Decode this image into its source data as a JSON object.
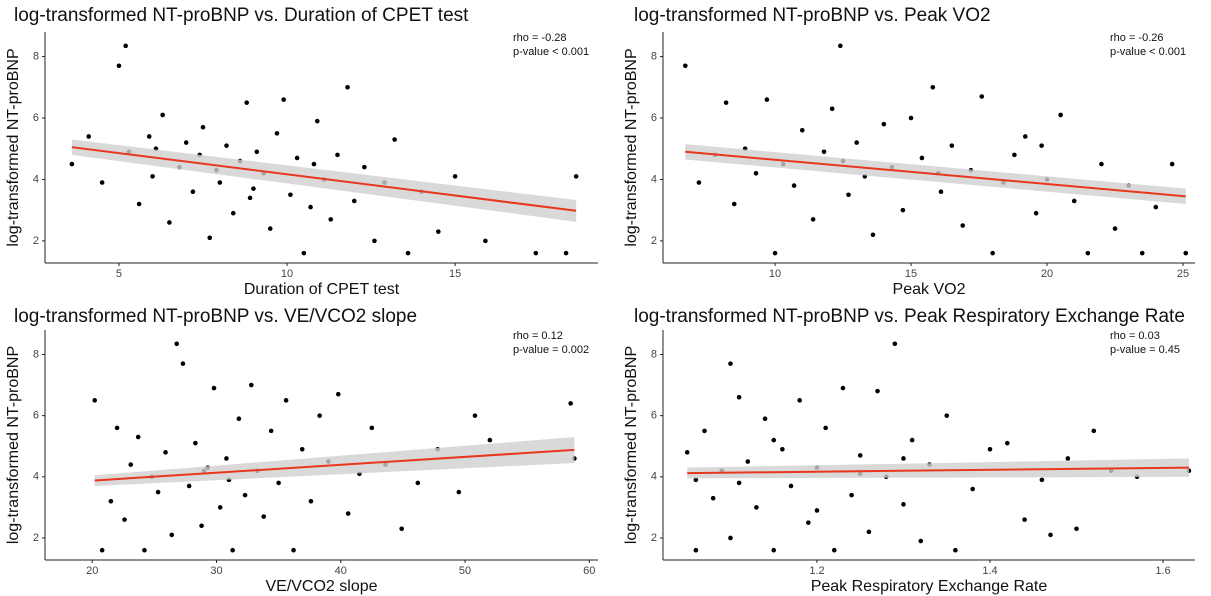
{
  "chart_data": [
    {
      "type": "scatter",
      "title": "log-transformed NT-proBNP vs. Duration of CPET test",
      "xlabel": "Duration of CPET test",
      "ylabel": "log-transformed NT-proBNP",
      "annotations": [
        "rho = -0.28",
        "p-value < 0.001"
      ],
      "xlim": [
        2.8,
        19.25
      ],
      "xticks": [
        5,
        10,
        15
      ],
      "ylim": [
        1.28,
        8.8
      ],
      "yticks": [
        2,
        4,
        6,
        8
      ],
      "color": "#000000",
      "x": [
        3.6,
        4.1,
        4.5,
        5.0,
        5.2,
        5.3,
        5.6,
        5.9,
        6.0,
        6.3,
        6.5,
        6.8,
        7.0,
        7.2,
        7.4,
        7.5,
        7.7,
        7.9,
        8.0,
        8.2,
        8.4,
        8.6,
        8.8,
        9.0,
        9.1,
        9.3,
        9.5,
        9.7,
        9.9,
        10.1,
        10.3,
        10.5,
        10.7,
        10.9,
        11.1,
        11.3,
        11.5,
        11.8,
        12.0,
        12.3,
        12.6,
        12.9,
        13.2,
        13.6,
        14.0,
        14.5,
        15.0,
        15.9,
        17.4,
        18.3,
        18.6,
        6.1,
        8.9,
        10.8
      ],
      "values": [
        4.5,
        5.4,
        3.9,
        7.7,
        8.35,
        4.9,
        3.2,
        5.4,
        4.1,
        6.1,
        2.6,
        4.4,
        5.2,
        3.6,
        4.8,
        5.7,
        2.1,
        4.3,
        3.9,
        5.1,
        2.9,
        4.6,
        6.5,
        3.7,
        4.9,
        4.2,
        2.4,
        5.5,
        6.6,
        3.5,
        4.7,
        1.6,
        3.1,
        5.9,
        4.0,
        2.7,
        4.8,
        7.0,
        3.3,
        4.4,
        2.0,
        3.9,
        5.3,
        1.6,
        3.6,
        2.3,
        4.1,
        2.0,
        1.6,
        1.6,
        4.1,
        5.0,
        3.4,
        4.5
      ],
      "fit": {
        "color": "#e8371e",
        "band_color": "#cfcfcf",
        "x": [
          3.6,
          18.6
        ],
        "values": [
          5.05,
          2.98
        ],
        "lower": [
          4.8,
          2.62
        ],
        "upper": [
          5.3,
          3.33
        ]
      }
    },
    {
      "type": "scatter",
      "title": "log-transformed NT-proBNP vs. Peak VO2",
      "xlabel": "Peak VO2",
      "ylabel": "log-transformed NT-proBNP",
      "annotations": [
        "rho = -0.26",
        "p-value < 0.001"
      ],
      "xlim": [
        5.88,
        25.44
      ],
      "xticks": [
        10,
        15,
        20,
        25
      ],
      "ylim": [
        1.28,
        8.8
      ],
      "yticks": [
        2,
        4,
        6,
        8
      ],
      "color": "#000000",
      "x": [
        6.7,
        7.2,
        7.8,
        8.2,
        8.5,
        8.9,
        9.3,
        9.7,
        10.0,
        10.3,
        10.7,
        11.0,
        11.4,
        11.8,
        12.1,
        12.4,
        12.7,
        13.0,
        13.3,
        13.6,
        14.0,
        14.3,
        14.7,
        15.0,
        15.4,
        15.8,
        16.1,
        16.5,
        16.9,
        17.2,
        17.6,
        18.0,
        18.4,
        18.8,
        19.2,
        19.6,
        20.0,
        20.5,
        21.0,
        21.5,
        22.0,
        22.5,
        23.0,
        23.5,
        24.0,
        24.6,
        25.1,
        12.5,
        16.0,
        19.8
      ],
      "values": [
        7.7,
        3.9,
        4.8,
        6.5,
        3.2,
        5.0,
        4.2,
        6.6,
        1.6,
        4.5,
        3.8,
        5.6,
        2.7,
        4.9,
        6.3,
        8.35,
        3.5,
        5.2,
        4.1,
        2.2,
        5.8,
        4.4,
        3.0,
        6.0,
        4.7,
        7.0,
        3.6,
        5.1,
        2.5,
        4.3,
        6.7,
        1.6,
        3.9,
        4.8,
        5.4,
        2.9,
        4.0,
        6.1,
        3.3,
        1.6,
        4.5,
        2.4,
        3.8,
        1.6,
        3.1,
        4.5,
        1.6,
        4.6,
        4.2,
        5.1
      ],
      "fit": {
        "color": "#e8371e",
        "band_color": "#cfcfcf",
        "x": [
          6.7,
          25.1
        ],
        "values": [
          4.9,
          3.45
        ],
        "lower": [
          4.65,
          3.2
        ],
        "upper": [
          5.15,
          3.7
        ]
      }
    },
    {
      "type": "scatter",
      "title": "log-transformed NT-proBNP vs. VE/VCO2 slope",
      "xlabel": "VE/VCO2 slope",
      "ylabel": "log-transformed NT-proBNP",
      "annotations": [
        "rho = 0.12",
        "p-value = 0.002"
      ],
      "xlim": [
        16.2,
        60.7
      ],
      "xticks": [
        20,
        30,
        40,
        50,
        60
      ],
      "ylim": [
        1.28,
        8.8
      ],
      "yticks": [
        2,
        4,
        6,
        8
      ],
      "color": "#000000",
      "x": [
        20.2,
        20.8,
        21.5,
        22.0,
        22.6,
        23.1,
        23.7,
        24.2,
        24.8,
        25.3,
        25.9,
        26.4,
        26.8,
        27.3,
        27.8,
        28.3,
        28.8,
        29.3,
        29.8,
        30.3,
        30.8,
        31.3,
        31.8,
        32.3,
        32.8,
        33.3,
        33.8,
        34.4,
        35.0,
        35.6,
        36.2,
        36.9,
        37.6,
        38.3,
        39.0,
        39.8,
        40.6,
        41.5,
        42.5,
        43.6,
        44.9,
        46.2,
        47.8,
        49.5,
        50.8,
        52.0,
        58.5,
        58.8,
        29.0,
        31.0
      ],
      "values": [
        6.5,
        1.6,
        3.2,
        5.6,
        2.6,
        4.4,
        5.3,
        1.6,
        4.0,
        3.5,
        4.8,
        2.1,
        8.35,
        7.7,
        3.7,
        5.1,
        2.4,
        4.3,
        6.9,
        3.0,
        4.6,
        1.6,
        5.9,
        3.4,
        7.0,
        4.2,
        2.7,
        5.5,
        3.8,
        6.5,
        1.6,
        4.9,
        3.2,
        6.0,
        4.5,
        6.7,
        2.8,
        4.1,
        5.6,
        4.4,
        2.3,
        3.8,
        4.9,
        3.5,
        6.0,
        5.2,
        6.4,
        4.6,
        4.2,
        3.9
      ],
      "fit": {
        "color": "#e8371e",
        "band_color": "#cfcfcf",
        "x": [
          20.2,
          58.8
        ],
        "values": [
          3.88,
          4.88
        ],
        "lower": [
          3.7,
          4.45
        ],
        "upper": [
          4.05,
          5.3
        ]
      }
    },
    {
      "type": "scatter",
      "title": "log-transformed NT-proBNP vs. Peak Respiratory Exchange Rate",
      "xlabel": "Peak Respiratory Exchange Rate",
      "ylabel": "log-transformed NT-proBNP",
      "annotations": [
        "rho = 0.03",
        "p-value = 0.45"
      ],
      "xlim": [
        1.022,
        1.637
      ],
      "xticks": [
        1.2,
        1.4,
        1.6
      ],
      "ylim": [
        1.28,
        8.8
      ],
      "yticks": [
        2,
        4,
        6,
        8
      ],
      "color": "#000000",
      "x": [
        1.05,
        1.06,
        1.07,
        1.08,
        1.09,
        1.1,
        1.1,
        1.11,
        1.12,
        1.13,
        1.14,
        1.15,
        1.16,
        1.17,
        1.18,
        1.19,
        1.2,
        1.21,
        1.22,
        1.23,
        1.24,
        1.25,
        1.26,
        1.27,
        1.28,
        1.29,
        1.3,
        1.31,
        1.32,
        1.33,
        1.35,
        1.36,
        1.38,
        1.4,
        1.42,
        1.44,
        1.46,
        1.47,
        1.49,
        1.5,
        1.52,
        1.54,
        1.57,
        1.63,
        1.11,
        1.15,
        1.2,
        1.25,
        1.3,
        1.06
      ],
      "values": [
        4.8,
        1.6,
        5.5,
        3.3,
        4.2,
        7.7,
        2.0,
        6.6,
        4.5,
        3.0,
        5.9,
        1.6,
        4.9,
        3.7,
        6.5,
        2.5,
        4.3,
        5.6,
        1.6,
        6.9,
        3.4,
        4.7,
        2.2,
        6.8,
        4.0,
        8.35,
        3.1,
        5.2,
        1.9,
        4.4,
        6.0,
        1.6,
        3.6,
        4.9,
        5.1,
        2.6,
        3.9,
        2.1,
        4.6,
        2.3,
        5.5,
        4.2,
        4.0,
        4.2,
        3.8,
        5.2,
        2.9,
        4.1,
        4.6,
        3.9
      ],
      "fit": {
        "color": "#e8371e",
        "band_color": "#cfcfcf",
        "x": [
          1.05,
          1.63
        ],
        "values": [
          4.12,
          4.3
        ],
        "lower": [
          3.95,
          4.0
        ],
        "upper": [
          4.3,
          4.6
        ]
      }
    }
  ]
}
